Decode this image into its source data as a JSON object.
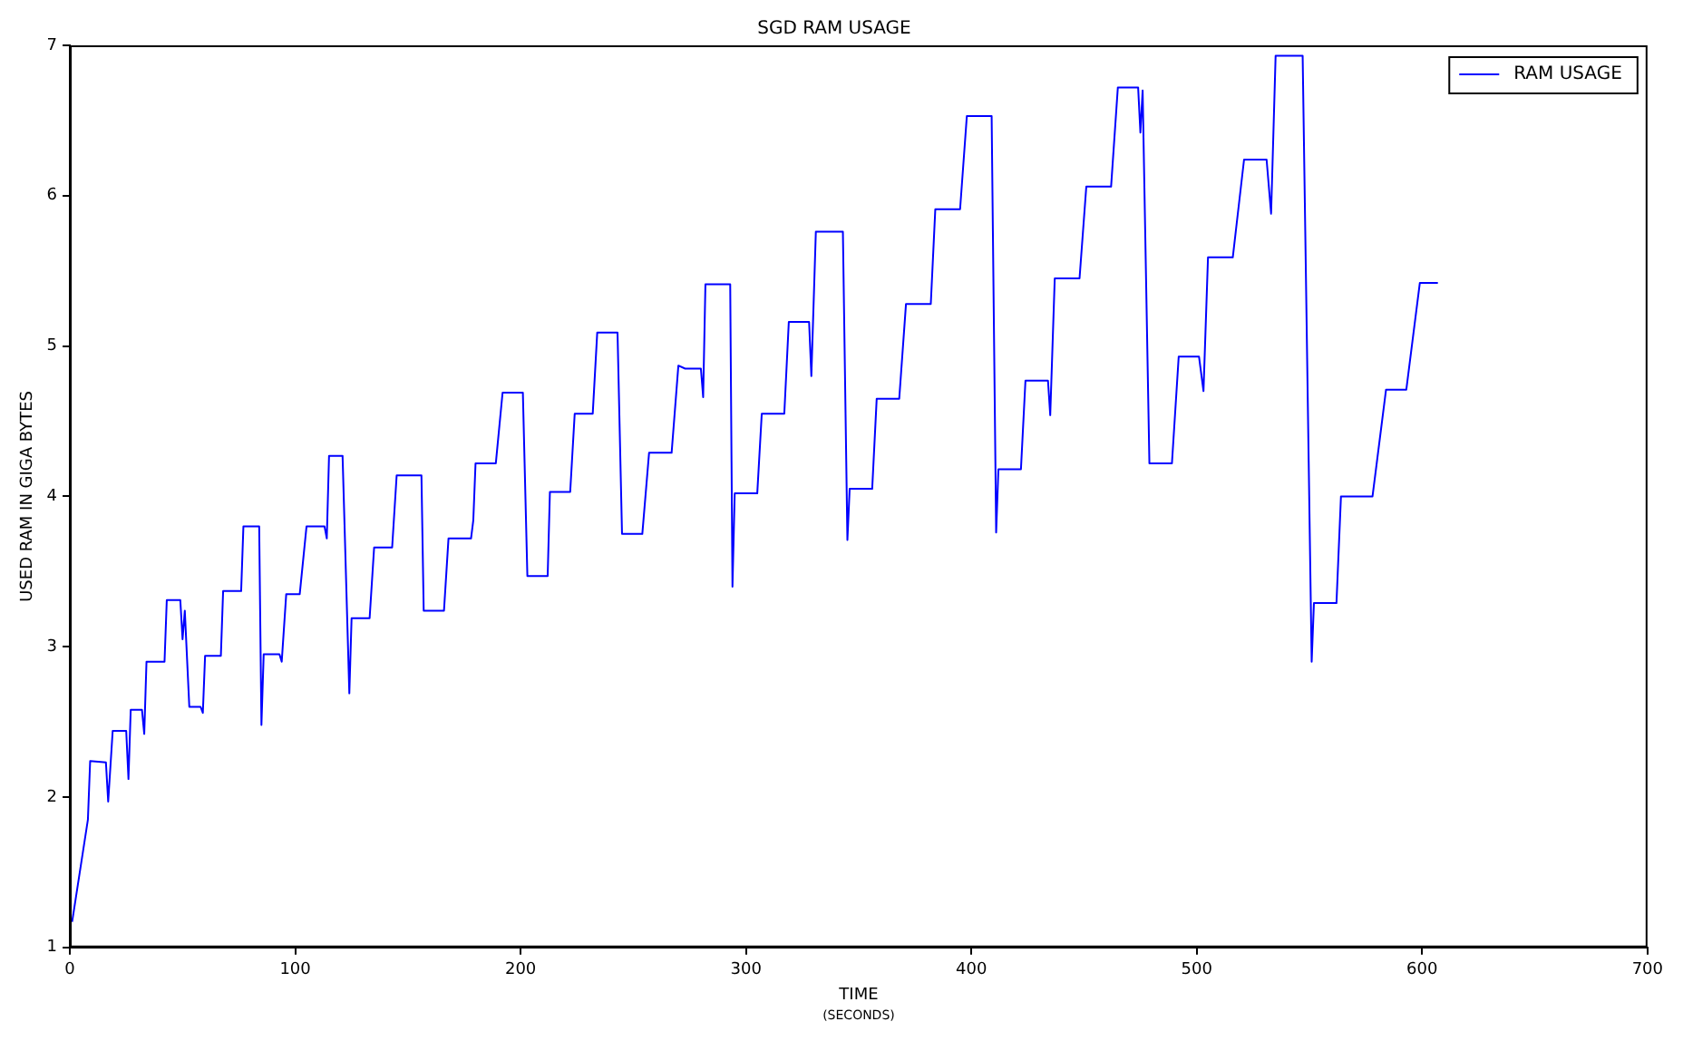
{
  "chart_data": {
    "type": "line",
    "title": "SGD RAM USAGE",
    "xlabel": "TIME",
    "annotations": [
      "(SECONDS)"
    ],
    "ylabel": "USED RAM IN GIGA BYTES",
    "xlim": [
      0,
      700
    ],
    "xticks": [
      0,
      100,
      200,
      300,
      400,
      500,
      600,
      700
    ],
    "ylim": [
      1,
      7
    ],
    "yticks": [
      1,
      2,
      3,
      4,
      5,
      6,
      7
    ],
    "grid": false,
    "legend": "top right",
    "marker": "none",
    "line_style": "solid",
    "series": [
      {
        "name": "RAM USAGE",
        "color": "#0000ff",
        "x": [
          1,
          8,
          9,
          16,
          17,
          19,
          25,
          26,
          27,
          32,
          33,
          34,
          42,
          43,
          49,
          50,
          51,
          53,
          58,
          59,
          60,
          67,
          68,
          76,
          77,
          84,
          85,
          86,
          93,
          94,
          96,
          102,
          105,
          113,
          114,
          115,
          121,
          124,
          125,
          133,
          135,
          143,
          145,
          156,
          157,
          166,
          168,
          178,
          179,
          180,
          189,
          192,
          201,
          203,
          212,
          213,
          222,
          224,
          232,
          234,
          243,
          245,
          254,
          257,
          267,
          270,
          273,
          280,
          281,
          282,
          293,
          294,
          295,
          305,
          307,
          317,
          319,
          328,
          329,
          331,
          343,
          345,
          346,
          356,
          358,
          368,
          371,
          382,
          384,
          395,
          398,
          409,
          411,
          412,
          422,
          424,
          434,
          435,
          437,
          448,
          451,
          462,
          465,
          474,
          475,
          476,
          479,
          489,
          492,
          501,
          503,
          505,
          516,
          521,
          531,
          533,
          535,
          547,
          551,
          552,
          562,
          564,
          578,
          584,
          593,
          599,
          607
        ],
        "values": [
          1.17,
          1.85,
          2.24,
          2.23,
          1.97,
          2.44,
          2.44,
          2.12,
          2.58,
          2.58,
          2.42,
          2.9,
          2.9,
          3.31,
          3.31,
          3.05,
          3.24,
          2.6,
          2.6,
          2.56,
          2.94,
          2.94,
          3.37,
          3.37,
          3.8,
          3.8,
          2.48,
          2.95,
          2.95,
          2.9,
          3.35,
          3.35,
          3.8,
          3.8,
          3.72,
          4.27,
          4.27,
          2.69,
          3.19,
          3.19,
          3.66,
          3.66,
          4.14,
          4.14,
          3.24,
          3.24,
          3.72,
          3.72,
          3.84,
          4.22,
          4.22,
          4.69,
          4.69,
          3.47,
          3.47,
          4.03,
          4.03,
          4.55,
          4.55,
          5.09,
          5.09,
          3.75,
          3.75,
          4.29,
          4.29,
          4.87,
          4.85,
          4.85,
          4.66,
          5.41,
          5.41,
          3.4,
          4.02,
          4.02,
          4.55,
          4.55,
          5.16,
          5.16,
          4.8,
          5.76,
          5.76,
          3.71,
          4.05,
          4.05,
          4.65,
          4.65,
          5.28,
          5.28,
          5.91,
          5.91,
          6.53,
          6.53,
          3.76,
          4.18,
          4.18,
          4.77,
          4.77,
          4.54,
          5.45,
          5.45,
          6.06,
          6.06,
          6.72,
          6.72,
          6.42,
          6.7,
          4.22,
          4.22,
          4.93,
          4.93,
          4.7,
          5.59,
          5.59,
          6.24,
          6.24,
          5.88,
          6.93,
          6.93,
          2.9,
          3.29,
          3.29,
          4.0,
          4.0,
          4.71,
          4.71,
          5.42,
          5.42
        ]
      }
    ]
  }
}
